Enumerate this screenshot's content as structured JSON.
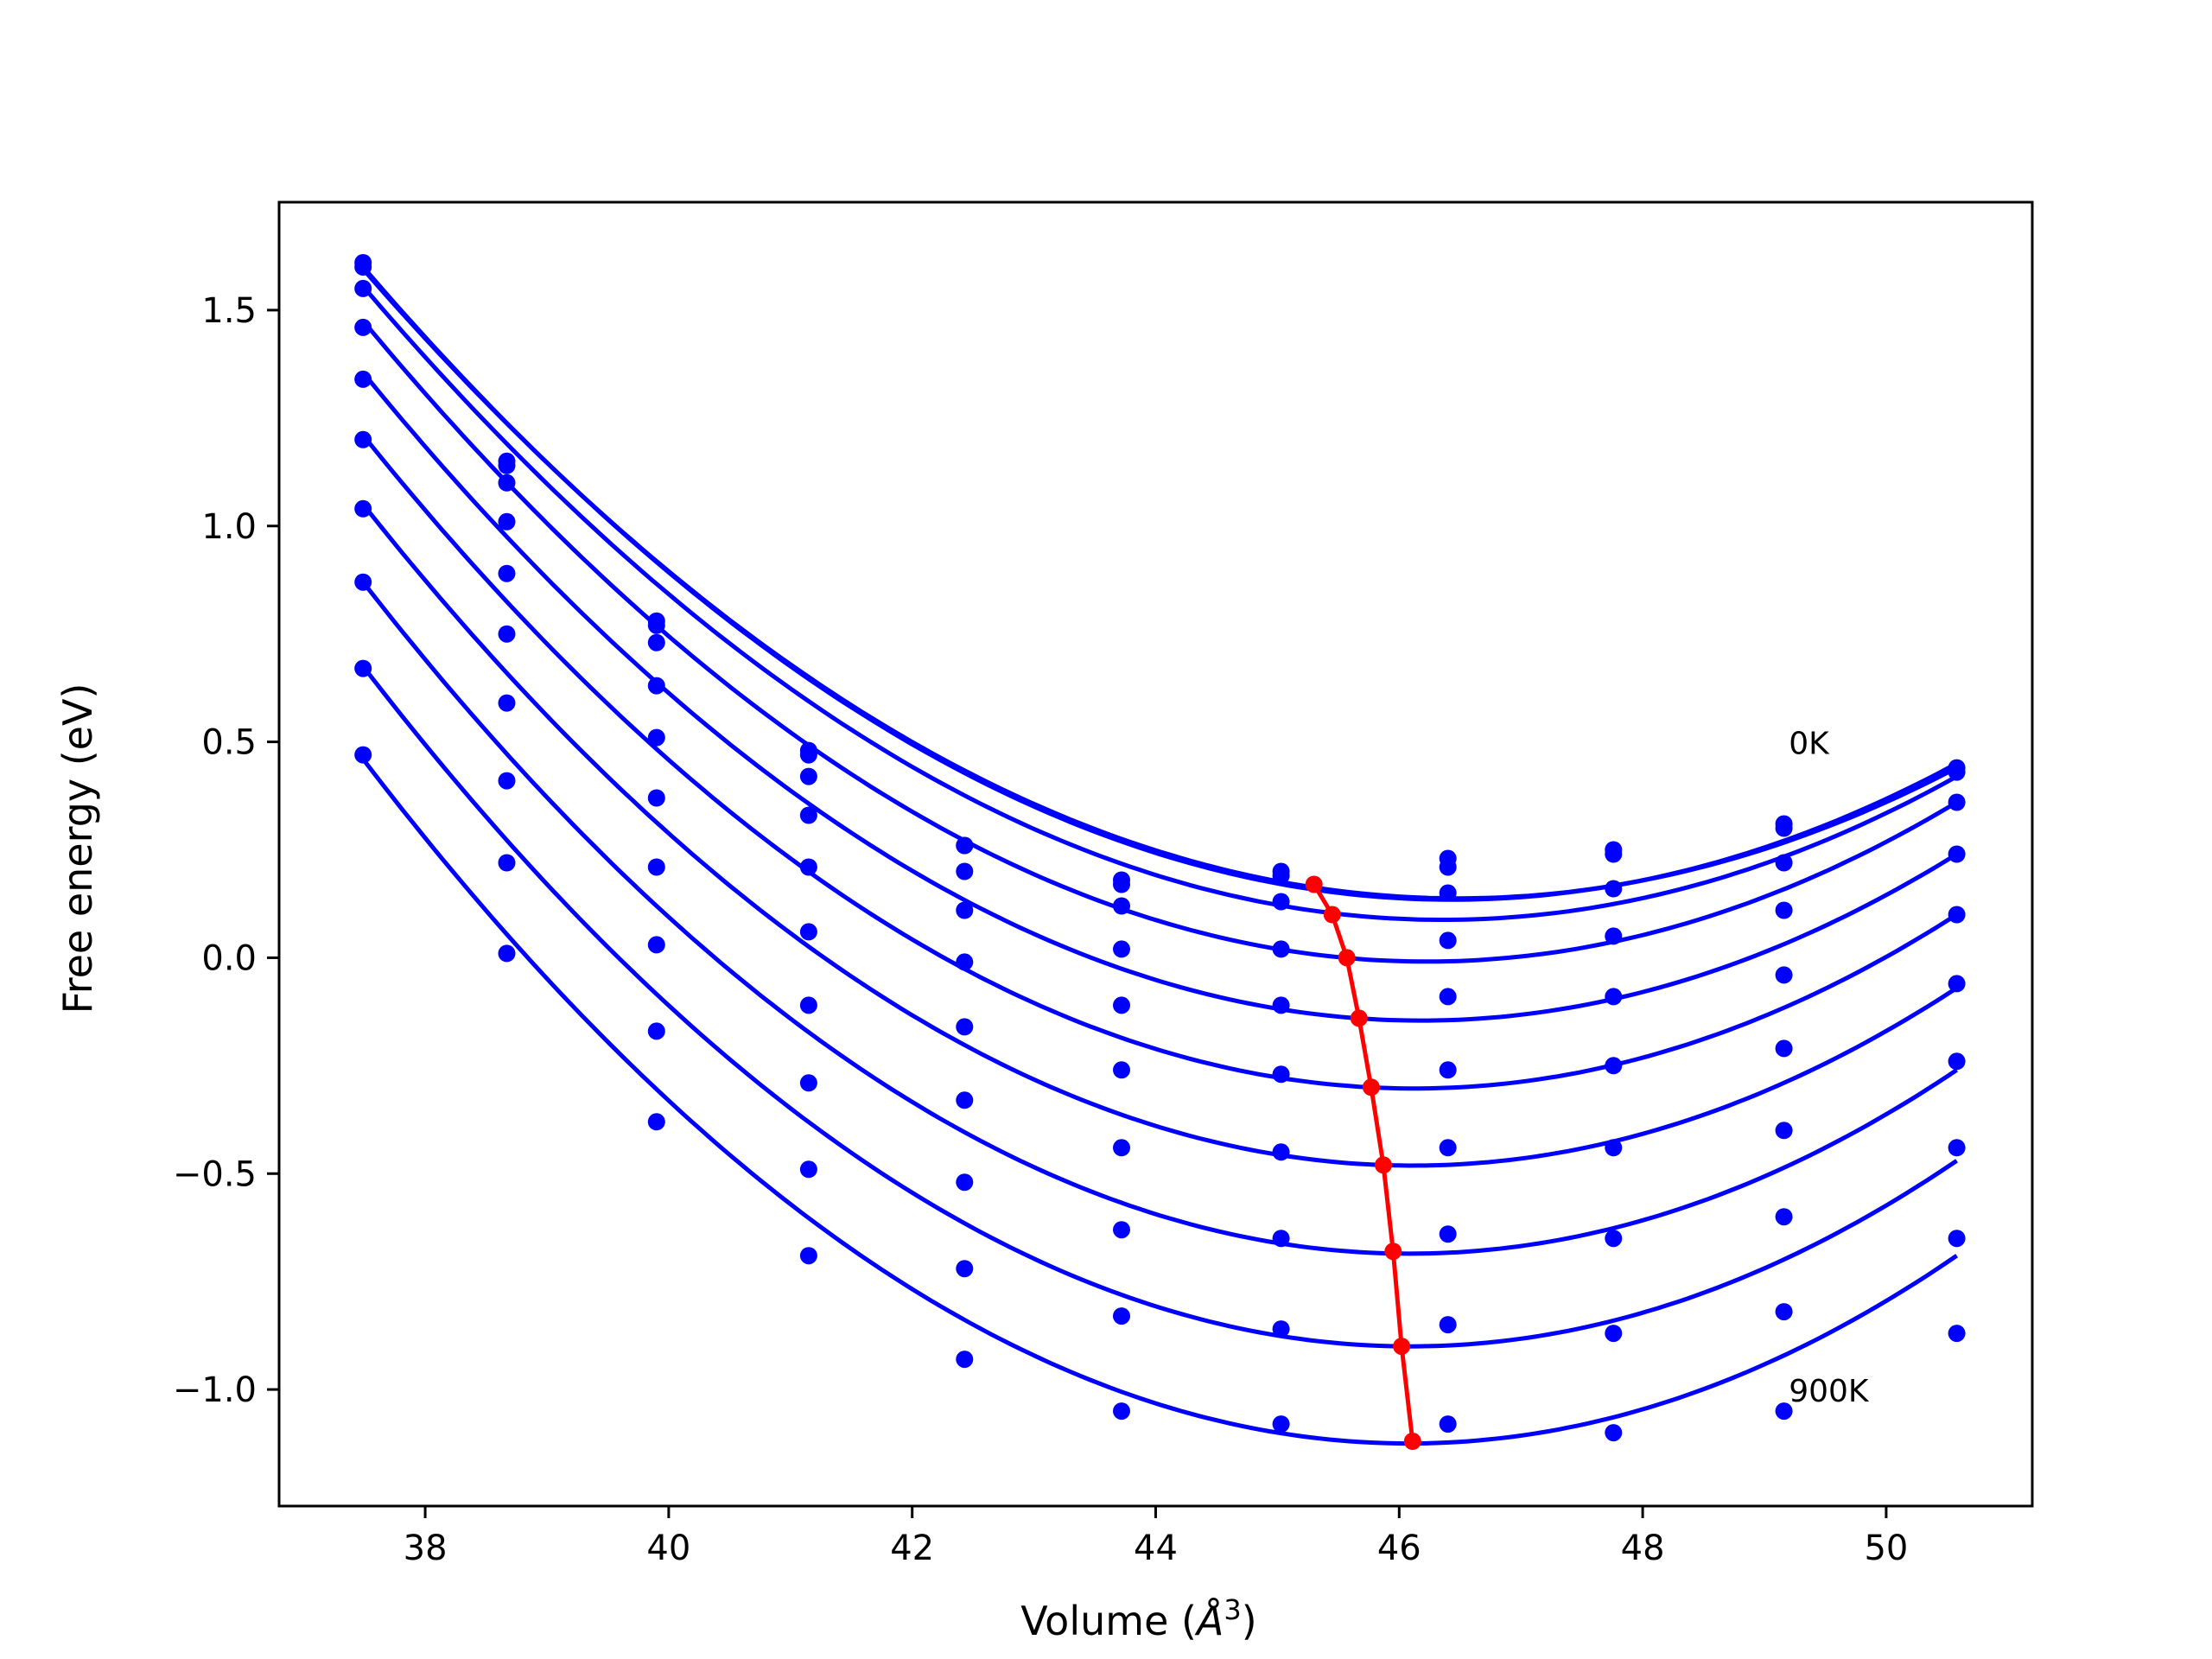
{
  "chart_data": {
    "type": "scatter",
    "xlabel_prefix": "Volume (",
    "xlabel_unit": "Å",
    "xlabel_exp": "3",
    "xlabel_suffix": ")",
    "ylabel": "Free energy (eV)",
    "xlim": [
      36.8,
      51.2
    ],
    "ylim": [
      -1.27,
      1.75
    ],
    "xticks": [
      38,
      40,
      42,
      44,
      46,
      48,
      50
    ],
    "yticks": [
      1.5,
      1.0,
      0.5,
      0.0,
      -0.5,
      -1.0
    ],
    "ytick_labels": [
      "1.5",
      "1.0",
      "0.5",
      "0.0",
      "−0.5",
      "−1.0"
    ],
    "grid": false,
    "annotations": [
      {
        "text": "0K",
        "x": 49.2,
        "y": 0.5
      },
      {
        "text": "900K",
        "x": 49.2,
        "y": -1.0
      }
    ],
    "colors": {
      "curves": "#0000ff",
      "equilibrium": "#ff0000"
    },
    "volumes": [
      37.49,
      38.67,
      39.9,
      41.15,
      42.43,
      43.72,
      45.03,
      46.4,
      47.76,
      49.16,
      50.58
    ],
    "series": [
      {
        "fit": [
          1.6,
          0.16,
          45.25,
          0.45
        ],
        "points": [
          1.61,
          1.15,
          0.78,
          0.48,
          0.26,
          0.18,
          0.2,
          0.23,
          0.25,
          0.31,
          0.44
        ]
      },
      {
        "fit": [
          1.595,
          0.165,
          45.25,
          0.44
        ],
        "points": [
          1.6,
          1.14,
          0.77,
          0.47,
          0.26,
          0.17,
          0.19,
          0.21,
          0.24,
          0.3,
          0.43
        ]
      },
      {
        "fit": [
          1.555,
          0.105,
          45.4,
          0.42
        ],
        "points": [
          1.55,
          1.1,
          0.73,
          0.42,
          0.2,
          0.12,
          0.13,
          0.15,
          0.16,
          0.22,
          0.36
        ]
      },
      {
        "fit": [
          1.475,
          0.0,
          45.55,
          0.36
        ],
        "points": [
          1.46,
          1.01,
          0.63,
          0.33,
          0.11,
          0.02,
          0.02,
          0.04,
          0.05,
          0.11,
          0.24
        ]
      },
      {
        "fit": [
          1.355,
          -0.14,
          45.65,
          0.24
        ],
        "points": [
          1.34,
          0.89,
          0.51,
          0.21,
          -0.01,
          -0.11,
          -0.11,
          -0.09,
          -0.09,
          -0.04,
          0.1
        ]
      },
      {
        "fit": [
          1.21,
          -0.3,
          45.75,
          0.1
        ],
        "points": [
          1.2,
          0.75,
          0.37,
          0.06,
          -0.16,
          -0.26,
          -0.27,
          -0.26,
          -0.25,
          -0.21,
          -0.06
        ]
      },
      {
        "fit": [
          1.05,
          -0.48,
          45.85,
          -0.07
        ],
        "points": [
          1.04,
          0.59,
          0.21,
          -0.11,
          -0.33,
          -0.44,
          -0.45,
          -0.44,
          -0.44,
          -0.4,
          -0.24
        ]
      },
      {
        "fit": [
          0.87,
          -0.685,
          45.95,
          -0.26
        ],
        "points": [
          0.87,
          0.41,
          0.03,
          -0.29,
          -0.52,
          -0.63,
          -0.65,
          -0.64,
          -0.65,
          -0.6,
          -0.44
        ]
      },
      {
        "fit": [
          0.675,
          -0.9,
          46.0,
          -0.47
        ],
        "points": [
          0.67,
          0.22,
          -0.17,
          -0.49,
          -0.72,
          -0.83,
          -0.86,
          -0.85,
          -0.87,
          -0.82,
          -0.65
        ]
      },
      {
        "fit": [
          0.46,
          -1.125,
          46.1,
          -0.69
        ],
        "points": [
          0.47,
          0.01,
          -0.38,
          -0.69,
          -0.93,
          -1.05,
          -1.08,
          -1.08,
          -1.1,
          -1.05,
          -0.87
        ]
      }
    ],
    "equilibrium": {
      "x": [
        45.3,
        45.45,
        45.57,
        45.67,
        45.77,
        45.87,
        45.95,
        46.02,
        46.11
      ],
      "y": [
        0.17,
        0.1,
        0.0,
        -0.14,
        -0.3,
        -0.48,
        -0.68,
        -0.9,
        -1.12
      ]
    }
  }
}
